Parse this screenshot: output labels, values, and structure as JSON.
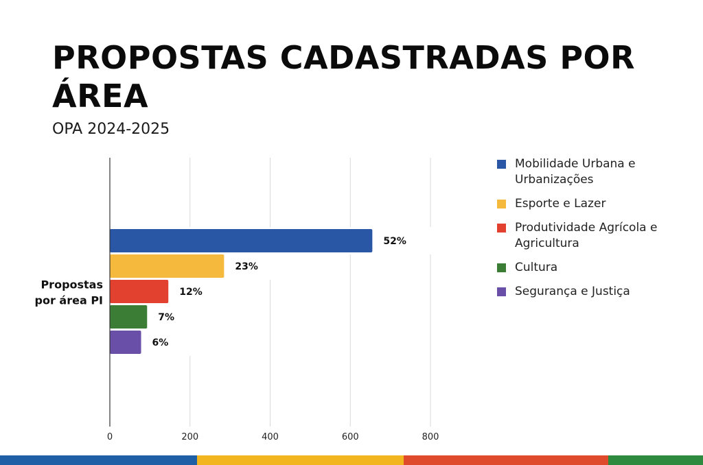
{
  "title": "PROPOSTAS CADASTRADAS POR ÁREA",
  "subtitle": "OPA 2024-2025",
  "chart_data": {
    "type": "bar",
    "orientation": "horizontal",
    "categories": [
      "Propostas por área PI"
    ],
    "series": [
      {
        "name": "Mobilidade Urbana e Urbanizações",
        "values": [
          655
        ],
        "label": "52%",
        "color": "#2a56a6"
      },
      {
        "name": "Esporte e Lazer",
        "values": [
          285
        ],
        "label": "23%",
        "color": "#f5b93e"
      },
      {
        "name": "Produtividade Agrícola e Agricultura",
        "values": [
          146
        ],
        "label": "12%",
        "color": "#e3412f"
      },
      {
        "name": "Cultura",
        "values": [
          93
        ],
        "label": "7%",
        "color": "#3b7d35"
      },
      {
        "name": "Segurança e Justiça",
        "values": [
          78
        ],
        "label": "6%",
        "color": "#6a4fa8"
      }
    ],
    "xlim": [
      0,
      800
    ],
    "xticks": [
      "0",
      "200",
      "400",
      "600",
      "800"
    ],
    "grid": true,
    "legend_position": "right"
  },
  "footer_colors": [
    "#1f5fa6",
    "#f3b51f",
    "#e04a2c",
    "#2e8a3e"
  ]
}
